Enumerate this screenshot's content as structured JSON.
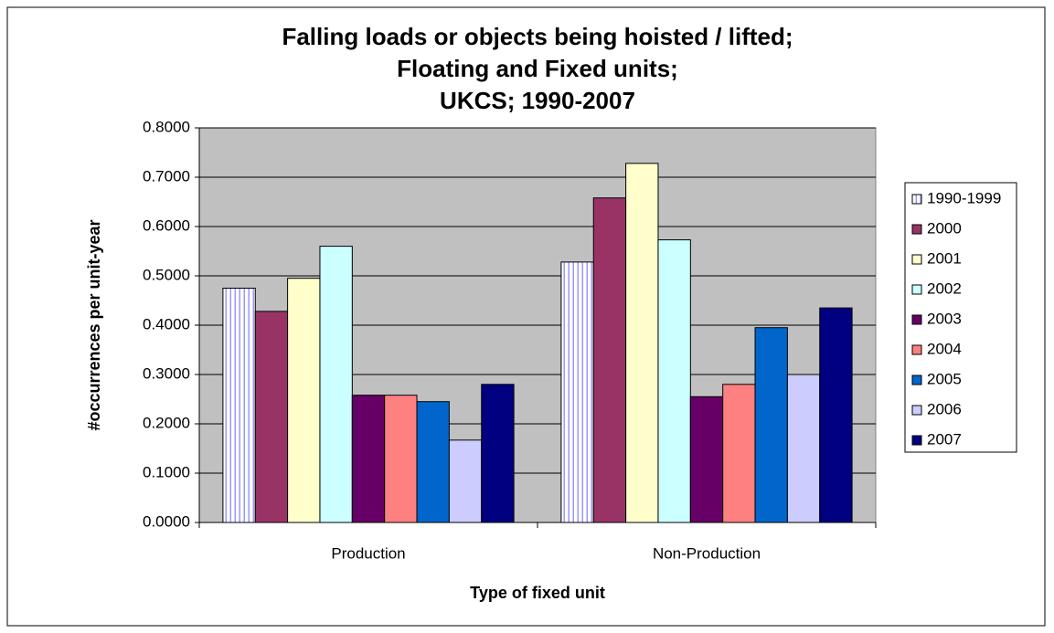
{
  "chart_data": {
    "type": "bar",
    "title": [
      "Falling loads or objects being hoisted / lifted;",
      "Floating and Fixed units;",
      "UKCS; 1990-2007"
    ],
    "x_label": "Type of fixed unit",
    "y_label": "#occurrences per unit-year",
    "categories": [
      "Production",
      "Non-Production"
    ],
    "series": [
      {
        "name": "1990-1999",
        "color": "#9999ff",
        "hatch": "vertical",
        "values": [
          0.475,
          0.528
        ]
      },
      {
        "name": "2000",
        "color": "#993366",
        "values": [
          0.428,
          0.658
        ]
      },
      {
        "name": "2001",
        "color": "#ffffcc",
        "values": [
          0.495,
          0.728
        ]
      },
      {
        "name": "2002",
        "color": "#ccffff",
        "values": [
          0.56,
          0.573
        ]
      },
      {
        "name": "2003",
        "color": "#660066",
        "values": [
          0.258,
          0.255
        ]
      },
      {
        "name": "2004",
        "color": "#ff8080",
        "values": [
          0.258,
          0.28
        ]
      },
      {
        "name": "2005",
        "color": "#0066cc",
        "values": [
          0.245,
          0.395
        ]
      },
      {
        "name": "2006",
        "color": "#ccccff",
        "values": [
          0.167,
          0.3
        ]
      },
      {
        "name": "2007",
        "color": "#000080",
        "values": [
          0.28,
          0.435
        ]
      }
    ],
    "ylim": [
      0,
      0.8
    ],
    "yticks": [
      {
        "value": 0,
        "label": "0.0000"
      },
      {
        "value": 0.1,
        "label": "0.1000"
      },
      {
        "value": 0.2,
        "label": "0.2000"
      },
      {
        "value": 0.3,
        "label": "0.3000"
      },
      {
        "value": 0.4,
        "label": "0.4000"
      },
      {
        "value": 0.5,
        "label": "0.5000"
      },
      {
        "value": 0.6,
        "label": "0.6000"
      },
      {
        "value": 0.7,
        "label": "0.7000"
      },
      {
        "value": 0.8,
        "label": "0.8000"
      }
    ],
    "grid": true,
    "plot_background": "#c0c0c0",
    "legend": "right"
  }
}
